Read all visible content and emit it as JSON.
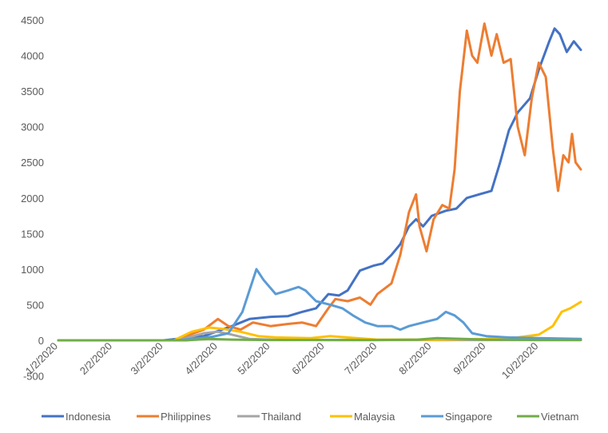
{
  "chart_data": {
    "type": "line",
    "title": "",
    "xlabel": "",
    "ylabel": "",
    "ylim": [
      -500,
      4500
    ],
    "yticks": [
      -500,
      0,
      500,
      1000,
      1500,
      2000,
      2500,
      3000,
      3500,
      4000,
      4500
    ],
    "x_start": "1/2/2020",
    "x_end": "10/26/2020",
    "xtick_labels": [
      "1/2/2020",
      "2/2/2020",
      "3/2/2020",
      "4/2/2020",
      "5/2/2020",
      "6/2/2020",
      "7/2/2020",
      "8/2/2020",
      "9/2/2020",
      "10/2/2020"
    ],
    "grid": false,
    "legend_position": "bottom",
    "series": [
      {
        "name": "Indonesia",
        "color": "#4472C4",
        "points": [
          [
            "1/2/2020",
            0
          ],
          [
            "3/2/2020",
            0
          ],
          [
            "3/25/2020",
            60
          ],
          [
            "4/10/2020",
            200
          ],
          [
            "4/20/2020",
            300
          ],
          [
            "5/2/2020",
            330
          ],
          [
            "5/12/2020",
            340
          ],
          [
            "5/20/2020",
            400
          ],
          [
            "5/28/2020",
            450
          ],
          [
            "6/4/2020",
            650
          ],
          [
            "6/10/2020",
            630
          ],
          [
            "6/15/2020",
            700
          ],
          [
            "6/22/2020",
            980
          ],
          [
            "6/30/2020",
            1050
          ],
          [
            "7/5/2020",
            1080
          ],
          [
            "7/10/2020",
            1200
          ],
          [
            "7/15/2020",
            1350
          ],
          [
            "7/20/2020",
            1600
          ],
          [
            "7/24/2020",
            1700
          ],
          [
            "7/28/2020",
            1600
          ],
          [
            "8/2/2020",
            1750
          ],
          [
            "8/10/2020",
            1820
          ],
          [
            "8/16/2020",
            1850
          ],
          [
            "8/22/2020",
            2000
          ],
          [
            "8/29/2020",
            2050
          ],
          [
            "9/5/2020",
            2100
          ],
          [
            "9/10/2020",
            2500
          ],
          [
            "9/15/2020",
            2950
          ],
          [
            "9/20/2020",
            3200
          ],
          [
            "9/27/2020",
            3400
          ],
          [
            "10/2/2020",
            3800
          ],
          [
            "10/8/2020",
            4200
          ],
          [
            "10/11/2020",
            4380
          ],
          [
            "10/14/2020",
            4300
          ],
          [
            "10/18/2020",
            4050
          ],
          [
            "10/22/2020",
            4200
          ],
          [
            "10/26/2020",
            4080
          ]
        ]
      },
      {
        "name": "Philippines",
        "color": "#ED7D31",
        "points": [
          [
            "1/2/2020",
            0
          ],
          [
            "3/8/2020",
            0
          ],
          [
            "3/25/2020",
            150
          ],
          [
            "4/2/2020",
            300
          ],
          [
            "4/8/2020",
            200
          ],
          [
            "4/15/2020",
            150
          ],
          [
            "4/22/2020",
            250
          ],
          [
            "5/2/2020",
            200
          ],
          [
            "5/12/2020",
            230
          ],
          [
            "5/20/2020",
            250
          ],
          [
            "5/28/2020",
            200
          ],
          [
            "6/4/2020",
            450
          ],
          [
            "6/8/2020",
            580
          ],
          [
            "6/15/2020",
            550
          ],
          [
            "6/22/2020",
            600
          ],
          [
            "6/28/2020",
            500
          ],
          [
            "7/2/2020",
            650
          ],
          [
            "7/10/2020",
            800
          ],
          [
            "7/15/2020",
            1200
          ],
          [
            "7/20/2020",
            1800
          ],
          [
            "7/24/2020",
            2050
          ],
          [
            "7/26/2020",
            1600
          ],
          [
            "7/30/2020",
            1250
          ],
          [
            "8/3/2020",
            1700
          ],
          [
            "8/8/2020",
            1900
          ],
          [
            "8/12/2020",
            1850
          ],
          [
            "8/15/2020",
            2400
          ],
          [
            "8/18/2020",
            3500
          ],
          [
            "8/22/2020",
            4350
          ],
          [
            "8/25/2020",
            4000
          ],
          [
            "8/28/2020",
            3900
          ],
          [
            "9/1/2020",
            4450
          ],
          [
            "9/5/2020",
            4000
          ],
          [
            "9/8/2020",
            4300
          ],
          [
            "9/12/2020",
            3900
          ],
          [
            "9/16/2020",
            3950
          ],
          [
            "9/20/2020",
            3000
          ],
          [
            "9/24/2020",
            2600
          ],
          [
            "9/28/2020",
            3400
          ],
          [
            "10/2/2020",
            3900
          ],
          [
            "10/6/2020",
            3700
          ],
          [
            "10/10/2020",
            2700
          ],
          [
            "10/13/2020",
            2100
          ],
          [
            "10/16/2020",
            2600
          ],
          [
            "10/19/2020",
            2500
          ],
          [
            "10/21/2020",
            2900
          ],
          [
            "10/23/2020",
            2500
          ],
          [
            "10/26/2020",
            2400
          ]
        ]
      },
      {
        "name": "Thailand",
        "color": "#A5A5A5",
        "points": [
          [
            "1/2/2020",
            0
          ],
          [
            "3/10/2020",
            0
          ],
          [
            "3/25/2020",
            100
          ],
          [
            "4/2/2020",
            120
          ],
          [
            "4/10/2020",
            80
          ],
          [
            "4/20/2020",
            20
          ],
          [
            "5/2/2020",
            10
          ],
          [
            "6/2/2020",
            5
          ],
          [
            "7/2/2020",
            5
          ],
          [
            "8/2/2020",
            5
          ],
          [
            "9/2/2020",
            5
          ],
          [
            "10/2/2020",
            5
          ],
          [
            "10/26/2020",
            5
          ]
        ]
      },
      {
        "name": "Malaysia",
        "color": "#FFC000",
        "points": [
          [
            "1/2/2020",
            0
          ],
          [
            "3/8/2020",
            0
          ],
          [
            "3/18/2020",
            120
          ],
          [
            "3/28/2020",
            180
          ],
          [
            "4/5/2020",
            160
          ],
          [
            "4/15/2020",
            120
          ],
          [
            "4/25/2020",
            60
          ],
          [
            "5/5/2020",
            40
          ],
          [
            "5/25/2020",
            30
          ],
          [
            "6/5/2020",
            60
          ],
          [
            "6/20/2020",
            30
          ],
          [
            "7/2/2020",
            10
          ],
          [
            "8/2/2020",
            10
          ],
          [
            "9/2/2020",
            20
          ],
          [
            "9/20/2020",
            40
          ],
          [
            "10/2/2020",
            80
          ],
          [
            "10/10/2020",
            200
          ],
          [
            "10/15/2020",
            400
          ],
          [
            "10/20/2020",
            450
          ],
          [
            "10/26/2020",
            540
          ]
        ]
      },
      {
        "name": "Singapore",
        "color": "#5B9BD5",
        "points": [
          [
            "1/2/2020",
            0
          ],
          [
            "3/10/2020",
            0
          ],
          [
            "3/30/2020",
            50
          ],
          [
            "4/8/2020",
            100
          ],
          [
            "4/16/2020",
            400
          ],
          [
            "4/20/2020",
            700
          ],
          [
            "4/24/2020",
            1000
          ],
          [
            "4/28/2020",
            850
          ],
          [
            "5/5/2020",
            650
          ],
          [
            "5/12/2020",
            700
          ],
          [
            "5/18/2020",
            750
          ],
          [
            "5/22/2020",
            700
          ],
          [
            "5/28/2020",
            550
          ],
          [
            "6/5/2020",
            500
          ],
          [
            "6/12/2020",
            450
          ],
          [
            "6/18/2020",
            350
          ],
          [
            "6/25/2020",
            250
          ],
          [
            "7/2/2020",
            200
          ],
          [
            "7/10/2020",
            200
          ],
          [
            "7/15/2020",
            150
          ],
          [
            "7/20/2020",
            200
          ],
          [
            "7/28/2020",
            250
          ],
          [
            "8/5/2020",
            300
          ],
          [
            "8/10/2020",
            400
          ],
          [
            "8/15/2020",
            350
          ],
          [
            "8/20/2020",
            250
          ],
          [
            "8/25/2020",
            100
          ],
          [
            "9/2/2020",
            60
          ],
          [
            "9/15/2020",
            40
          ],
          [
            "10/2/2020",
            30
          ],
          [
            "10/26/2020",
            20
          ]
        ]
      },
      {
        "name": "Vietnam",
        "color": "#70AD47",
        "points": [
          [
            "1/2/2020",
            0
          ],
          [
            "3/15/2020",
            0
          ],
          [
            "3/28/2020",
            20
          ],
          [
            "4/10/2020",
            10
          ],
          [
            "5/2/2020",
            5
          ],
          [
            "6/2/2020",
            5
          ],
          [
            "7/2/2020",
            5
          ],
          [
            "7/25/2020",
            10
          ],
          [
            "8/5/2020",
            30
          ],
          [
            "8/20/2020",
            20
          ],
          [
            "9/2/2020",
            10
          ],
          [
            "10/2/2020",
            5
          ],
          [
            "10/26/2020",
            5
          ]
        ]
      }
    ]
  }
}
